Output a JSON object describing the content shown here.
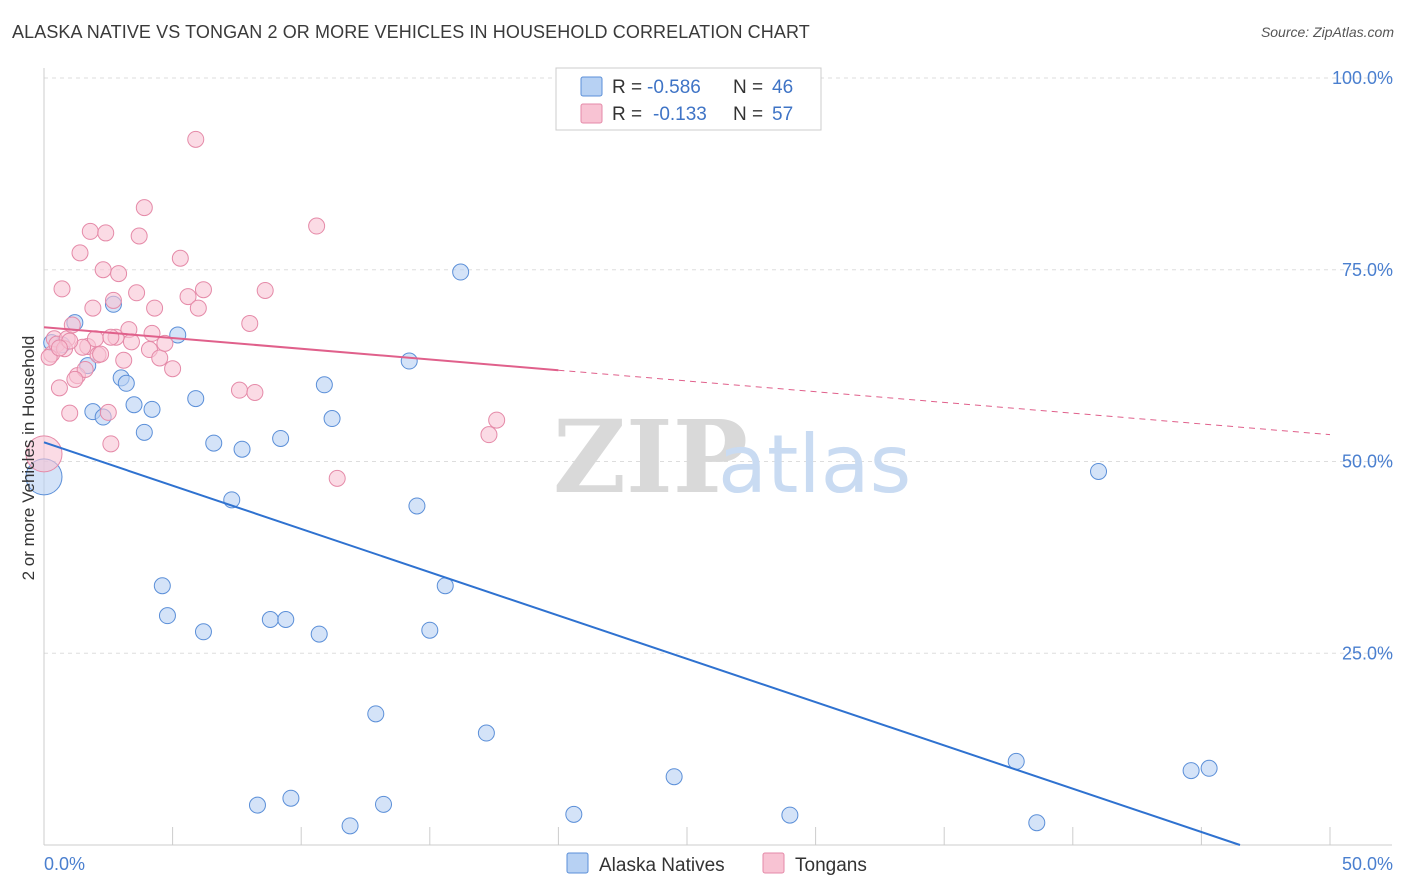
{
  "header": {
    "title": "ALASKA NATIVE VS TONGAN 2 OR MORE VEHICLES IN HOUSEHOLD CORRELATION CHART",
    "source": "Source: ZipAtlas.com"
  },
  "watermark": {
    "zip": "ZIP",
    "atlas": "atlas"
  },
  "colors": {
    "blue_fill": "#b7d1f3",
    "blue_stroke": "#5b8fd8",
    "blue_line": "#2f72d0",
    "pink_fill": "#f8c3d3",
    "pink_stroke": "#e58aa8",
    "pink_line": "#e0608b",
    "grid": "#dddddd",
    "tick_label": "#4a7fcf"
  },
  "legend": {
    "rows": [
      {
        "r_label": "R =",
        "r_value": "-0.586",
        "n_label": "N =",
        "n_value": "46",
        "color": "#b7d1f3",
        "border": "#5b8fd8"
      },
      {
        "r_label": "R =",
        "r_value": "-0.133",
        "n_label": "N =",
        "n_value": "57",
        "color": "#f8c3d3",
        "border": "#e58aa8"
      }
    ]
  },
  "bottom_legend": [
    {
      "label": "Alaska Natives",
      "color": "#b7d1f3",
      "border": "#5b8fd8"
    },
    {
      "label": "Tongans",
      "color": "#f8c3d3",
      "border": "#e58aa8"
    }
  ],
  "chart_data": {
    "type": "scatter",
    "title": "ALASKA NATIVE VS TONGAN 2 OR MORE VEHICLES IN HOUSEHOLD CORRELATION CHART",
    "xlabel": "",
    "ylabel": "2 or more Vehicles in Household",
    "xlim": [
      0,
      50
    ],
    "ylim": [
      0,
      100
    ],
    "x_tick_labels": [
      "0.0%",
      "50.0%"
    ],
    "y_tick_labels": [
      "100.0%",
      "75.0%",
      "50.0%",
      "25.0%"
    ],
    "y_tick_values": [
      100,
      75,
      50,
      25
    ],
    "grid": true,
    "series": [
      {
        "name": "Alaska Natives",
        "color": "#b7d1f3",
        "points": [
          [
            0.0,
            48.0
          ],
          [
            0.7,
            65.2
          ],
          [
            1.2,
            68.1
          ],
          [
            1.7,
            62.5
          ],
          [
            1.9,
            56.5
          ],
          [
            2.3,
            55.8
          ],
          [
            2.7,
            70.5
          ],
          [
            3.0,
            60.9
          ],
          [
            3.2,
            60.2
          ],
          [
            3.5,
            57.4
          ],
          [
            3.9,
            53.8
          ],
          [
            4.2,
            56.8
          ],
          [
            4.6,
            33.8
          ],
          [
            4.8,
            29.9
          ],
          [
            5.2,
            66.5
          ],
          [
            5.9,
            58.2
          ],
          [
            6.2,
            27.8
          ],
          [
            6.6,
            52.4
          ],
          [
            7.3,
            45.0
          ],
          [
            7.7,
            51.6
          ],
          [
            8.3,
            5.2
          ],
          [
            8.8,
            29.4
          ],
          [
            9.2,
            53.0
          ],
          [
            9.4,
            29.4
          ],
          [
            9.6,
            6.1
          ],
          [
            10.7,
            27.5
          ],
          [
            10.9,
            60.0
          ],
          [
            11.2,
            55.6
          ],
          [
            11.9,
            2.5
          ],
          [
            12.9,
            17.1
          ],
          [
            13.2,
            5.3
          ],
          [
            14.2,
            63.1
          ],
          [
            14.5,
            44.2
          ],
          [
            15.0,
            28.0
          ],
          [
            15.6,
            33.8
          ],
          [
            16.2,
            74.7
          ],
          [
            17.2,
            14.6
          ],
          [
            20.6,
            4.0
          ],
          [
            24.5,
            8.9
          ],
          [
            29.0,
            3.9
          ],
          [
            37.8,
            10.9
          ],
          [
            38.6,
            2.9
          ],
          [
            41.0,
            48.7
          ],
          [
            44.6,
            9.7
          ],
          [
            45.3,
            10.0
          ],
          [
            0.3,
            65.5
          ]
        ],
        "trend": {
          "x1": 0,
          "y1": 52.5,
          "x2": 46.5,
          "y2": 0,
          "solid_until": 46.5
        }
      },
      {
        "name": "Tongans",
        "color": "#f8c3d3",
        "points": [
          [
            0.0,
            51.0
          ],
          [
            0.3,
            64.0
          ],
          [
            0.4,
            66.0
          ],
          [
            0.5,
            65.3
          ],
          [
            0.6,
            59.6
          ],
          [
            0.7,
            72.5
          ],
          [
            0.9,
            66.0
          ],
          [
            1.0,
            56.3
          ],
          [
            1.1,
            67.8
          ],
          [
            1.3,
            61.2
          ],
          [
            1.4,
            77.2
          ],
          [
            1.6,
            62.0
          ],
          [
            1.7,
            65.0
          ],
          [
            1.8,
            80.0
          ],
          [
            1.9,
            70.0
          ],
          [
            2.0,
            66.0
          ],
          [
            2.1,
            63.9
          ],
          [
            2.3,
            75.0
          ],
          [
            2.4,
            79.8
          ],
          [
            2.5,
            56.4
          ],
          [
            2.6,
            52.3
          ],
          [
            2.7,
            71.0
          ],
          [
            2.8,
            66.2
          ],
          [
            2.9,
            74.5
          ],
          [
            3.1,
            63.2
          ],
          [
            3.3,
            67.2
          ],
          [
            3.4,
            65.6
          ],
          [
            3.6,
            72.0
          ],
          [
            3.7,
            79.4
          ],
          [
            3.9,
            83.1
          ],
          [
            4.1,
            64.6
          ],
          [
            4.2,
            66.7
          ],
          [
            4.3,
            70.0
          ],
          [
            4.5,
            63.5
          ],
          [
            4.7,
            65.4
          ],
          [
            5.0,
            62.1
          ],
          [
            5.3,
            76.5
          ],
          [
            5.6,
            71.5
          ],
          [
            5.9,
            92.0
          ],
          [
            6.0,
            70.0
          ],
          [
            6.2,
            72.4
          ],
          [
            7.6,
            59.3
          ],
          [
            8.0,
            68.0
          ],
          [
            8.2,
            59.0
          ],
          [
            8.6,
            72.3
          ],
          [
            10.6,
            80.7
          ],
          [
            11.4,
            47.8
          ],
          [
            17.3,
            53.5
          ],
          [
            17.6,
            55.4
          ],
          [
            1.5,
            64.9
          ],
          [
            0.8,
            64.7
          ],
          [
            2.2,
            64.0
          ],
          [
            1.2,
            60.7
          ],
          [
            0.2,
            63.6
          ],
          [
            1.0,
            65.7
          ],
          [
            2.6,
            66.2
          ],
          [
            0.6,
            64.8
          ]
        ],
        "trend": {
          "x1": 0,
          "y1": 67.5,
          "x2": 50,
          "y2": 53.5,
          "solid_until": 20
        }
      }
    ]
  }
}
